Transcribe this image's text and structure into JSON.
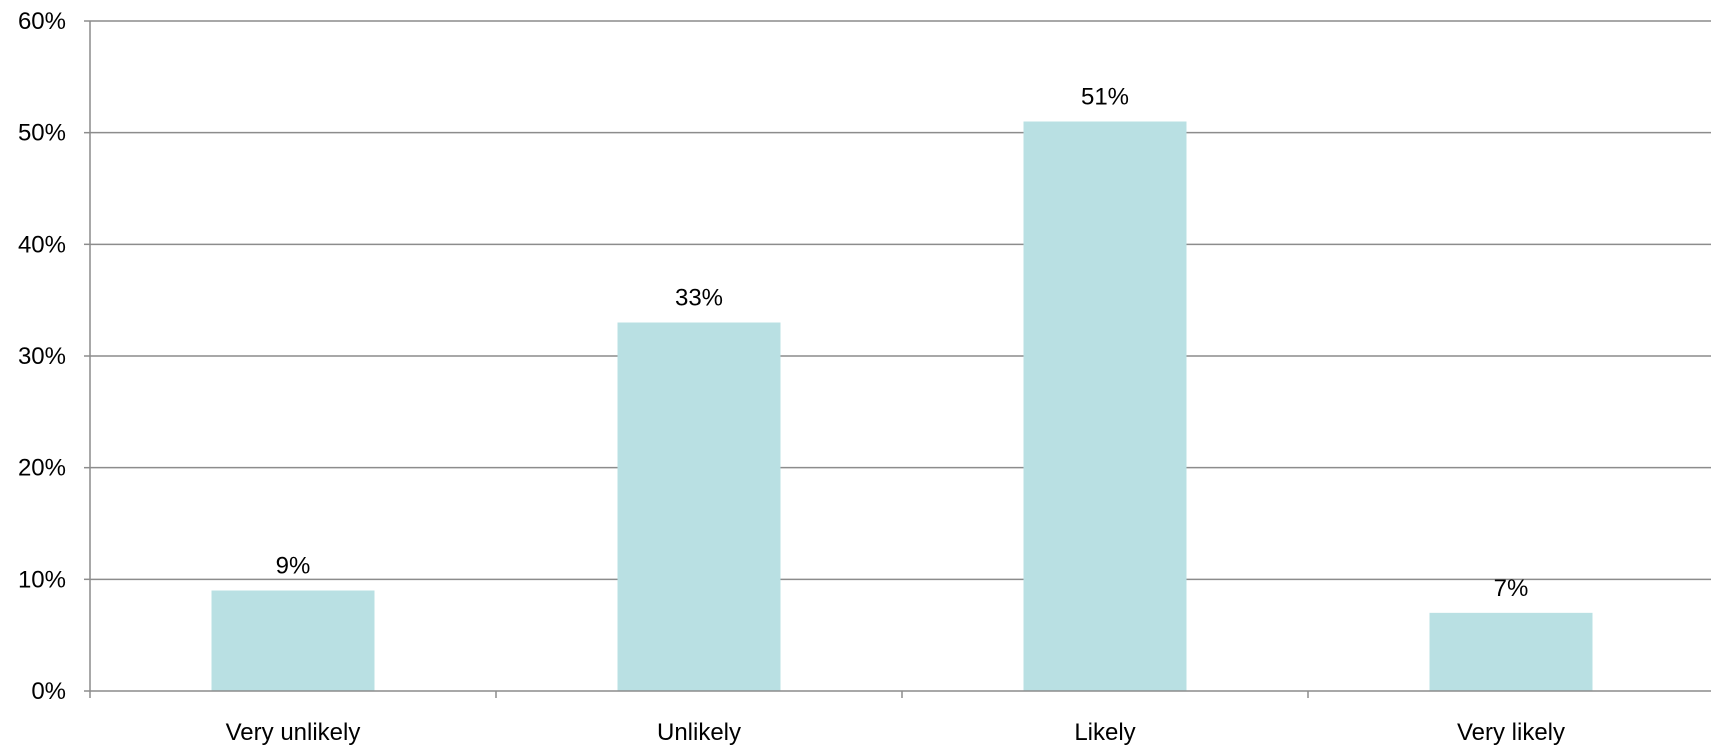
{
  "chart_data": {
    "type": "bar",
    "categories": [
      "Very unlikely",
      "Unlikely",
      "Likely",
      "Very likely"
    ],
    "values": [
      9,
      33,
      51,
      7
    ],
    "value_labels": [
      "9%",
      "33%",
      "51%",
      "7%"
    ],
    "title": "",
    "xlabel": "",
    "ylabel": "",
    "ylim": [
      0,
      60
    ],
    "y_ticks": [
      0,
      10,
      20,
      30,
      40,
      50,
      60
    ],
    "y_tick_labels": [
      "0%",
      "10%",
      "20%",
      "30%",
      "40%",
      "50%",
      "60%"
    ],
    "grid": true,
    "legend": "none",
    "colors": {
      "bar": "#b9e0e3",
      "grid": "#8c8c8c",
      "axis": "#8c8c8c",
      "text": "#000000"
    }
  }
}
